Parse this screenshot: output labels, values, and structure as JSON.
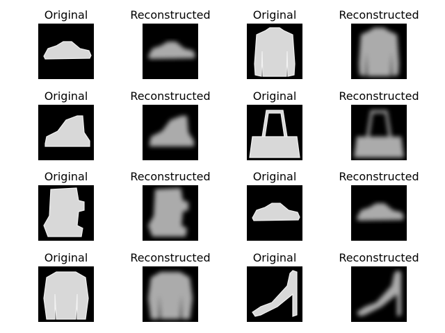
{
  "figure": {
    "background": "#ffffff",
    "grid_rows": 4,
    "grid_cols": 4,
    "panels": [
      {
        "title": "Original",
        "kind": "original",
        "item": "sneaker"
      },
      {
        "title": "Reconstructed",
        "kind": "reconstructed",
        "item": "sneaker"
      },
      {
        "title": "Original",
        "kind": "original",
        "item": "hoodie"
      },
      {
        "title": "Reconstructed",
        "kind": "reconstructed",
        "item": "hoodie"
      },
      {
        "title": "Original",
        "kind": "original",
        "item": "ankle-boot"
      },
      {
        "title": "Reconstructed",
        "kind": "reconstructed",
        "item": "ankle-boot"
      },
      {
        "title": "Original",
        "kind": "original",
        "item": "bag"
      },
      {
        "title": "Reconstructed",
        "kind": "reconstructed",
        "item": "bag"
      },
      {
        "title": "Original",
        "kind": "original",
        "item": "boot"
      },
      {
        "title": "Reconstructed",
        "kind": "reconstructed",
        "item": "boot"
      },
      {
        "title": "Original",
        "kind": "original",
        "item": "sneaker"
      },
      {
        "title": "Reconstructed",
        "kind": "reconstructed",
        "item": "sneaker"
      },
      {
        "title": "Original",
        "kind": "original",
        "item": "pullover"
      },
      {
        "title": "Reconstructed",
        "kind": "reconstructed",
        "item": "pullover"
      },
      {
        "title": "Original",
        "kind": "original",
        "item": "sandal"
      },
      {
        "title": "Reconstructed",
        "kind": "reconstructed",
        "item": "sandal"
      }
    ]
  }
}
